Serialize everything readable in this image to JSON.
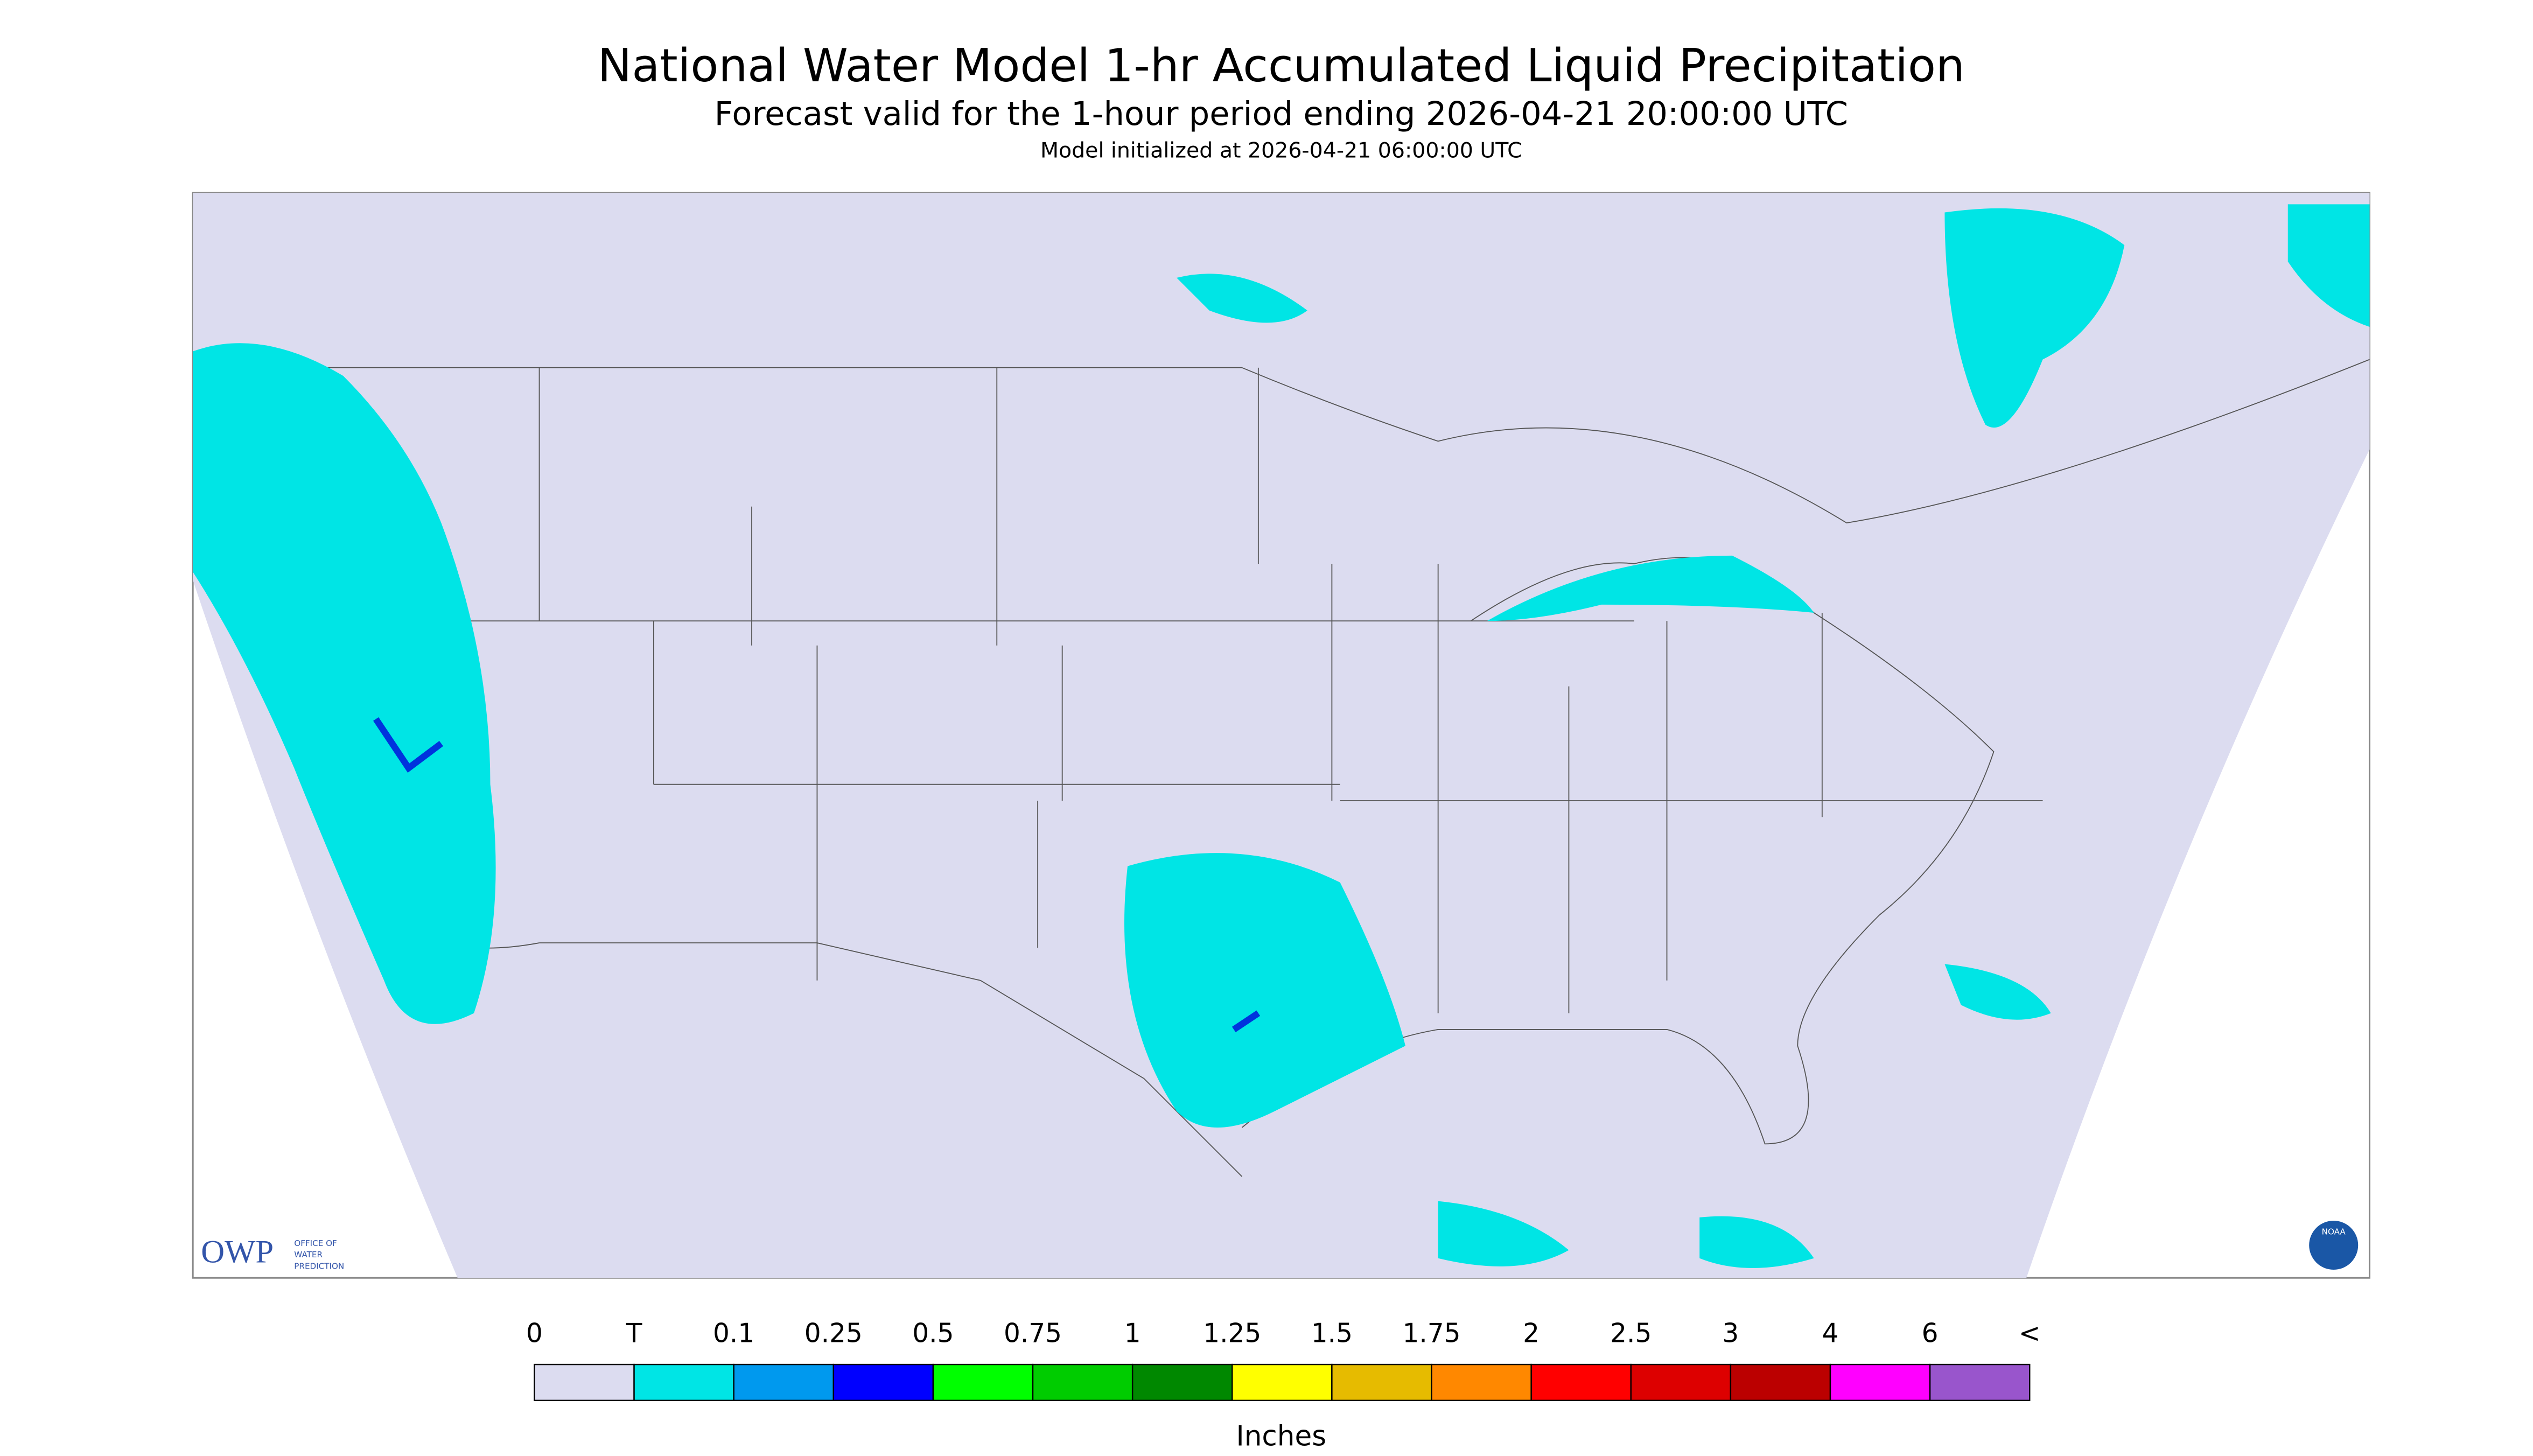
{
  "header": {
    "title": "National Water Model 1-hr Accumulated Liquid Precipitation",
    "subtitle": "Forecast valid for the 1-hour period ending 2026-04-21 20:00:00 UTC",
    "initialized": "Model initialized at 2026-04-21 06:00:00 UTC"
  },
  "logos": {
    "owp": "OWP",
    "owp_text": [
      "OFFICE OF",
      "WATER",
      "PREDICTION"
    ],
    "noaa": "NOAA"
  },
  "legend": {
    "labels": [
      "0",
      "T",
      "0.1",
      "0.25",
      "0.5",
      "0.75",
      "1",
      "1.25",
      "1.5",
      "1.75",
      "2",
      "2.5",
      "3",
      "4",
      "6",
      "<"
    ],
    "colors": [
      "#dcdcf0",
      "#00e5e5",
      "#0099ee",
      "#0000ff",
      "#00ff00",
      "#00cc00",
      "#008800",
      "#ffff00",
      "#e6bb00",
      "#ff8800",
      "#ff0000",
      "#dd0000",
      "#bb0000",
      "#ff00ff",
      "#9955cc"
    ],
    "unit": "Inches"
  }
}
